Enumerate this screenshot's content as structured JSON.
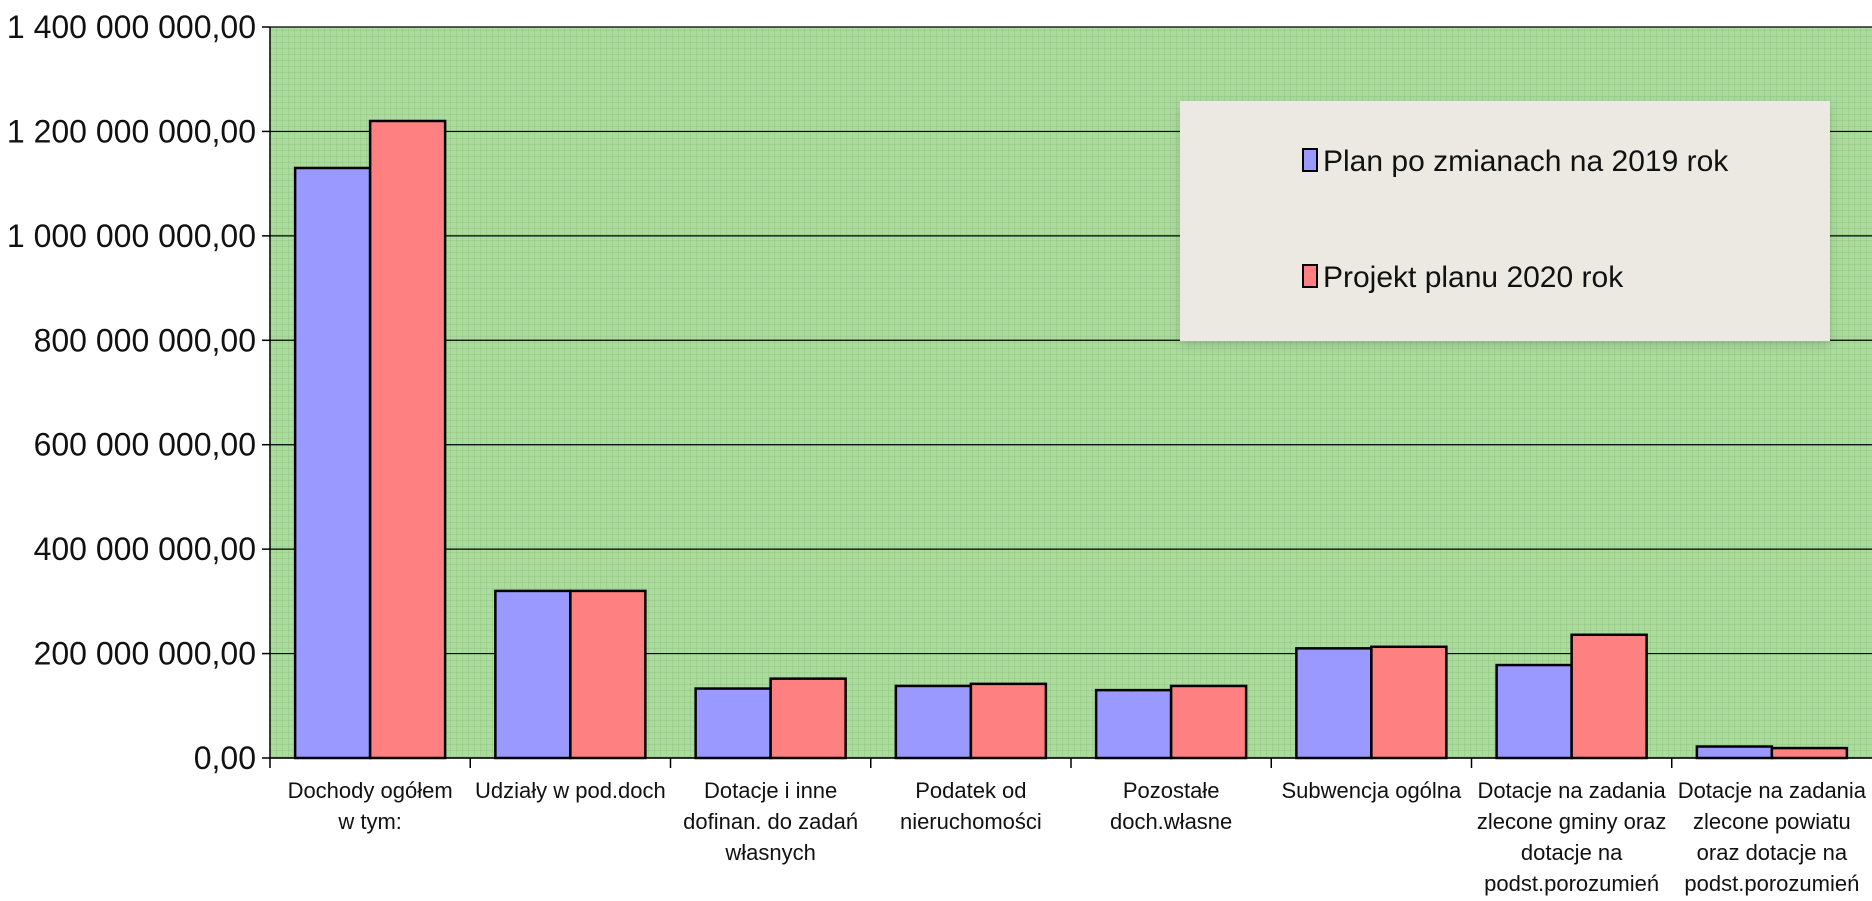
{
  "chart_data": {
    "type": "bar",
    "title": "",
    "xlabel": "",
    "ylabel": "",
    "ylim": [
      0,
      1400000000
    ],
    "yticks": [
      0,
      200000000,
      400000000,
      600000000,
      800000000,
      1000000000,
      1200000000,
      1400000000
    ],
    "ytick_labels": [
      "0,00",
      "200 000 000,00",
      "400 000 000,00",
      "600 000 000,00",
      "800 000 000,00",
      "1 000 000 000,00",
      "1 200 000 000,00",
      "1 400 000 000,00"
    ],
    "grid": true,
    "legend_position": "top-right",
    "categories": [
      [
        "Dochody ogółem",
        "w tym:"
      ],
      [
        "Udziały w pod.doch"
      ],
      [
        "Dotacje i inne",
        "dofinan. do zadań",
        "własnych"
      ],
      [
        "Podatek od",
        "nieruchomości"
      ],
      [
        "Pozostałe",
        "doch.własne"
      ],
      [
        "Subwencja ogólna"
      ],
      [
        "Dotacje na zadania",
        "zlecone gminy oraz",
        "dotacje na",
        "podst.porozumień"
      ],
      [
        "Dotacje na zadania",
        "zlecone powiatu",
        "oraz dotacje na",
        "podst.porozumień"
      ]
    ],
    "series": [
      {
        "name": "Plan po zmianach na 2019 rok",
        "color": "#9999ff",
        "values": [
          1130000000,
          320000000,
          133000000,
          138000000,
          130000000,
          210000000,
          178000000,
          22000000
        ]
      },
      {
        "name": "Projekt planu 2020 rok",
        "color": "#ff8080",
        "values": [
          1220000000,
          320000000,
          152000000,
          142000000,
          138000000,
          213000000,
          236000000,
          19000000
        ]
      }
    ],
    "colors": {
      "plot_background": "#a8d89a",
      "legend_background": "#ebe9e1",
      "gridline": "#000000"
    }
  }
}
